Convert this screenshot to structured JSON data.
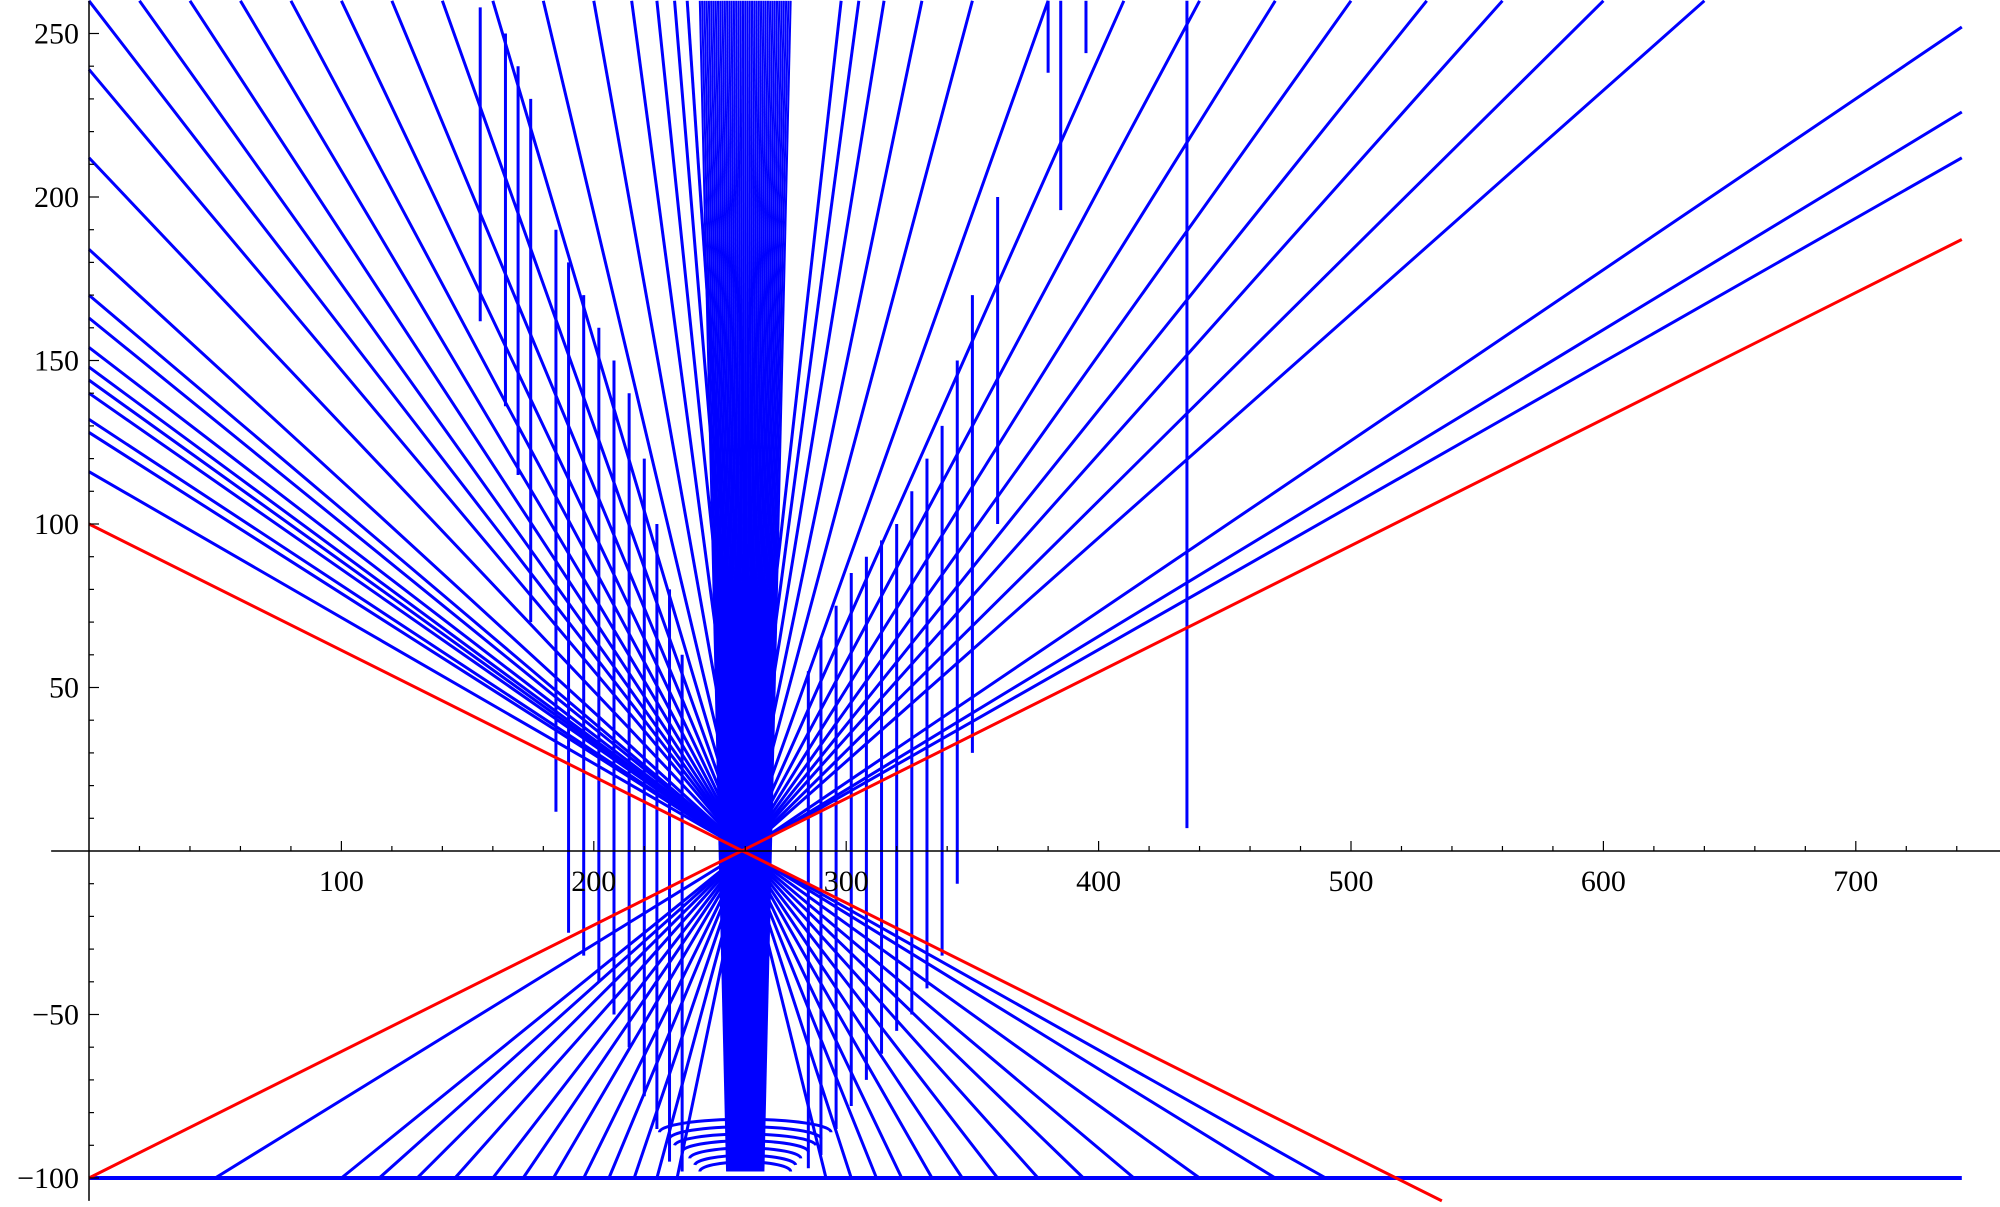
{
  "chart_data": {
    "type": "line",
    "title": "",
    "xlabel": "",
    "ylabel": "",
    "xlim": [
      -15,
      760
    ],
    "ylim": [
      -107,
      260
    ],
    "grid": false,
    "legend": "none",
    "x_ticks": [
      {
        "value": 100,
        "label": "100"
      },
      {
        "value": 200,
        "label": "200"
      },
      {
        "value": 300,
        "label": "300"
      },
      {
        "value": 400,
        "label": "400"
      },
      {
        "value": 500,
        "label": "500"
      },
      {
        "value": 600,
        "label": "600"
      },
      {
        "value": 700,
        "label": "700"
      }
    ],
    "y_ticks": [
      {
        "value": -100,
        "label": "−100"
      },
      {
        "value": -50,
        "label": "−50"
      },
      {
        "value": 50,
        "label": "50"
      },
      {
        "value": 100,
        "label": "100"
      },
      {
        "value": 150,
        "label": "150"
      },
      {
        "value": 200,
        "label": "200"
      },
      {
        "value": 250,
        "label": "250"
      }
    ],
    "red_lines": {
      "color": "#ff0000",
      "lines": [
        {
          "x1": 0,
          "y1": 100,
          "x2": 536,
          "y2": -107
        },
        {
          "x1": 0,
          "y1": -100,
          "x2": 742,
          "y2": 187
        }
      ]
    },
    "blue_series": {
      "color": "#0000ff",
      "baseline_y": -100,
      "baseline_x": [
        0,
        742
      ],
      "convergence_point": [
        260,
        0
      ],
      "left_fan": {
        "top_edge_x": [
          0,
          20,
          40,
          60,
          80,
          100,
          120,
          140,
          160,
          180,
          200,
          215,
          225,
          232,
          237
        ],
        "axis_y_intercepts": [
          116,
          128,
          132,
          140,
          144,
          148,
          154,
          163,
          170,
          184,
          212,
          239
        ],
        "bottom_x": [
          50,
          100,
          115,
          130,
          145,
          160,
          172,
          184,
          196,
          206,
          216,
          225,
          233
        ]
      },
      "right_fan": {
        "top_edge_x": [
          298,
          305,
          315,
          330,
          350,
          380,
          410,
          440,
          470,
          500,
          530,
          560,
          600,
          640
        ],
        "side_exits": [
          {
            "x": 742,
            "y": 252
          },
          {
            "x": 742,
            "y": 226
          },
          {
            "x": 742,
            "y": 212
          }
        ],
        "bottom_x": [
          292,
          302,
          312,
          322,
          334,
          346,
          360,
          376,
          394,
          414,
          440,
          470,
          490
        ]
      },
      "vertical_lines": {
        "left": [
          {
            "x": 155,
            "y1": 162,
            "y2": 258
          },
          {
            "x": 165,
            "y1": 136,
            "y2": 250
          },
          {
            "x": 170,
            "y1": 115,
            "y2": 240
          },
          {
            "x": 175,
            "y1": 70,
            "y2": 230
          },
          {
            "x": 185,
            "y1": 12,
            "y2": 190
          },
          {
            "x": 190,
            "y1": -25,
            "y2": 180
          },
          {
            "x": 196,
            "y1": -32,
            "y2": 170
          },
          {
            "x": 202,
            "y1": -40,
            "y2": 160
          },
          {
            "x": 208,
            "y1": -50,
            "y2": 150
          },
          {
            "x": 214,
            "y1": -60,
            "y2": 140
          },
          {
            "x": 220,
            "y1": -75,
            "y2": 120
          },
          {
            "x": 225,
            "y1": -85,
            "y2": 100
          },
          {
            "x": 230,
            "y1": -95,
            "y2": 80
          },
          {
            "x": 235,
            "y1": -98,
            "y2": 60
          }
        ],
        "right": [
          {
            "x": 285,
            "y1": -97,
            "y2": 55
          },
          {
            "x": 290,
            "y1": -93,
            "y2": 65
          },
          {
            "x": 296,
            "y1": -85,
            "y2": 75
          },
          {
            "x": 302,
            "y1": -78,
            "y2": 85
          },
          {
            "x": 308,
            "y1": -70,
            "y2": 90
          },
          {
            "x": 314,
            "y1": -62,
            "y2": 95
          },
          {
            "x": 320,
            "y1": -55,
            "y2": 100
          },
          {
            "x": 326,
            "y1": -50,
            "y2": 110
          },
          {
            "x": 332,
            "y1": -42,
            "y2": 120
          },
          {
            "x": 338,
            "y1": -32,
            "y2": 130
          },
          {
            "x": 344,
            "y1": -10,
            "y2": 150
          },
          {
            "x": 350,
            "y1": 30,
            "y2": 170
          },
          {
            "x": 360,
            "y1": 100,
            "y2": 200
          },
          {
            "x": 380,
            "y1": 238,
            "y2": 260
          },
          {
            "x": 385,
            "y1": 196,
            "y2": 260
          },
          {
            "x": 395,
            "y1": 244,
            "y2": 260
          },
          {
            "x": 435,
            "y1": 7,
            "y2": 260
          }
        ]
      },
      "bottom_arcs": {
        "center_x": 260,
        "y_levels": [
          -86,
          -88,
          -90,
          -92,
          -94,
          -96,
          -98
        ],
        "half_widths": [
          34,
          30,
          28,
          25,
          22,
          20,
          18
        ]
      }
    }
  }
}
